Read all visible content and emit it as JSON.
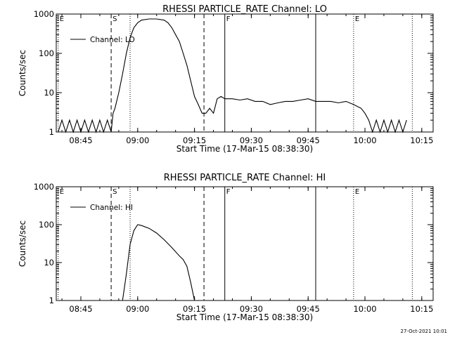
{
  "figure": {
    "background": "#ffffff",
    "ink": "#000000",
    "footer_stamp": "27-Oct-2021 10:01"
  },
  "chart_data": [
    {
      "type": "line",
      "title": "RHESSI PARTICLE_RATE Channel: LO",
      "xlabel": "Start Time (17-Mar-15 08:38:30)",
      "ylabel": "Counts/sec",
      "yscale": "log",
      "ylim": [
        1,
        1000
      ],
      "xlim": [
        "08:38:30",
        "10:18:00"
      ],
      "x_ticks": [
        "08:45",
        "09:00",
        "09:15",
        "09:30",
        "09:45",
        "10:00",
        "10:15"
      ],
      "y_ticks": [
        "1",
        "10",
        "100",
        "1000"
      ],
      "legend": {
        "placement": "top-left",
        "entries": [
          "Channel: LO"
        ]
      },
      "markers": [
        {
          "label": "E",
          "time": "08:39:00",
          "style": "dotted"
        },
        {
          "label": "S",
          "time": "08:53:00",
          "style": "dashed"
        },
        {
          "label": "",
          "time": "08:58:00",
          "style": "dotted"
        },
        {
          "label": "",
          "time": "09:17:30",
          "style": "dashed"
        },
        {
          "label": "F",
          "time": "09:23:00",
          "style": "solid"
        },
        {
          "label": "",
          "time": "09:47:00",
          "style": "solid"
        },
        {
          "label": "E",
          "time": "09:57:00",
          "style": "dotted"
        },
        {
          "label": "",
          "time": "10:12:30",
          "style": "dotted"
        }
      ],
      "series": [
        {
          "name": "Channel: LO",
          "points": [
            [
              "08:39:00",
              1
            ],
            [
              "08:40:00",
              2
            ],
            [
              "08:41:00",
              1
            ],
            [
              "08:42:00",
              2
            ],
            [
              "08:43:00",
              1
            ],
            [
              "08:44:00",
              2
            ],
            [
              "08:45:00",
              1
            ],
            [
              "08:46:00",
              2
            ],
            [
              "08:47:00",
              1
            ],
            [
              "08:48:00",
              2
            ],
            [
              "08:49:00",
              1
            ],
            [
              "08:50:00",
              2
            ],
            [
              "08:51:00",
              1
            ],
            [
              "08:52:00",
              2
            ],
            [
              "08:53:00",
              1
            ],
            [
              "08:53:30",
              3
            ],
            [
              "08:54:00",
              4
            ],
            [
              "08:55:00",
              10
            ],
            [
              "08:56:00",
              30
            ],
            [
              "08:57:00",
              100
            ],
            [
              "08:58:00",
              250
            ],
            [
              "08:59:00",
              450
            ],
            [
              "09:00:00",
              600
            ],
            [
              "09:01:00",
              700
            ],
            [
              "09:03:00",
              750
            ],
            [
              "09:05:00",
              750
            ],
            [
              "09:07:00",
              700
            ],
            [
              "09:08:00",
              600
            ],
            [
              "09:09:00",
              450
            ],
            [
              "09:10:00",
              300
            ],
            [
              "09:11:00",
              200
            ],
            [
              "09:12:00",
              100
            ],
            [
              "09:13:00",
              50
            ],
            [
              "09:14:00",
              20
            ],
            [
              "09:15:00",
              8
            ],
            [
              "09:16:00",
              5
            ],
            [
              "09:17:00",
              3
            ],
            [
              "09:18:00",
              3
            ],
            [
              "09:19:00",
              4
            ],
            [
              "09:20:00",
              3
            ],
            [
              "09:21:00",
              7
            ],
            [
              "09:22:00",
              8
            ],
            [
              "09:23:00",
              7
            ],
            [
              "09:25:00",
              7
            ],
            [
              "09:27:00",
              6.5
            ],
            [
              "09:29:00",
              7
            ],
            [
              "09:31:00",
              6
            ],
            [
              "09:33:00",
              6
            ],
            [
              "09:35:00",
              5
            ],
            [
              "09:37:00",
              5.5
            ],
            [
              "09:39:00",
              6
            ],
            [
              "09:41:00",
              6
            ],
            [
              "09:43:00",
              6.5
            ],
            [
              "09:45:00",
              7
            ],
            [
              "09:47:00",
              6
            ],
            [
              "09:49:00",
              6
            ],
            [
              "09:51:00",
              6
            ],
            [
              "09:53:00",
              5.5
            ],
            [
              "09:55:00",
              6
            ],
            [
              "09:57:00",
              5
            ],
            [
              "09:59:00",
              4
            ],
            [
              "10:00:00",
              3
            ],
            [
              "10:01:00",
              2
            ],
            [
              "10:02:00",
              1
            ],
            [
              "10:03:00",
              2
            ],
            [
              "10:04:00",
              1
            ],
            [
              "10:05:00",
              2
            ],
            [
              "10:06:00",
              1
            ],
            [
              "10:07:00",
              2
            ],
            [
              "10:08:00",
              1
            ],
            [
              "10:09:00",
              2
            ],
            [
              "10:10:00",
              1
            ],
            [
              "10:11:00",
              2
            ]
          ]
        }
      ]
    },
    {
      "type": "line",
      "title": "RHESSI PARTICLE_RATE Channel: HI",
      "xlabel": "Start Time (17-Mar-15 08:38:30)",
      "ylabel": "Counts/sec",
      "yscale": "log",
      "ylim": [
        1,
        1000
      ],
      "xlim": [
        "08:38:30",
        "10:18:00"
      ],
      "x_ticks": [
        "08:45",
        "09:00",
        "09:15",
        "09:30",
        "09:45",
        "10:00",
        "10:15"
      ],
      "y_ticks": [
        "1",
        "10",
        "100",
        "1000"
      ],
      "legend": {
        "placement": "top-left",
        "entries": [
          "Channel: HI"
        ]
      },
      "markers": [
        {
          "label": "E",
          "time": "08:39:00",
          "style": "dotted"
        },
        {
          "label": "S",
          "time": "08:53:00",
          "style": "dashed"
        },
        {
          "label": "",
          "time": "08:58:00",
          "style": "dotted"
        },
        {
          "label": "",
          "time": "09:17:30",
          "style": "dashed"
        },
        {
          "label": "F",
          "time": "09:23:00",
          "style": "solid"
        },
        {
          "label": "",
          "time": "09:47:00",
          "style": "solid"
        },
        {
          "label": "E",
          "time": "09:57:00",
          "style": "dotted"
        },
        {
          "label": "",
          "time": "10:12:30",
          "style": "dotted"
        }
      ],
      "series": [
        {
          "name": "Channel: HI",
          "points": [
            [
              "08:56:00",
              1
            ],
            [
              "08:57:00",
              5
            ],
            [
              "08:58:00",
              30
            ],
            [
              "08:59:00",
              70
            ],
            [
              "09:00:00",
              100
            ],
            [
              "09:01:00",
              95
            ],
            [
              "09:03:00",
              80
            ],
            [
              "09:05:00",
              60
            ],
            [
              "09:07:00",
              40
            ],
            [
              "09:09:00",
              25
            ],
            [
              "09:11:00",
              15
            ],
            [
              "09:12:00",
              12
            ],
            [
              "09:13:00",
              8
            ],
            [
              "09:14:00",
              3
            ],
            [
              "09:15:00",
              1
            ]
          ]
        }
      ]
    }
  ]
}
